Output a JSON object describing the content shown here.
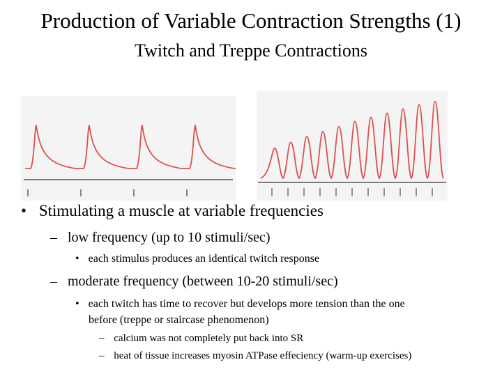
{
  "slide": {
    "title": "Production of Variable Contraction Strengths (1)",
    "subtitle": "Twitch and Treppe Contractions"
  },
  "figures": {
    "twitch": {
      "peak_count": 4,
      "stimulus_mark_count": 4,
      "trace_color": "#d9534f",
      "baseline_color": "#555555"
    },
    "treppe": {
      "peak_count": 11,
      "stimulus_mark_count": 11,
      "trace_color": "#d9534f",
      "baseline_color": "#555555",
      "relative_peaks": [
        0.36,
        0.43,
        0.5,
        0.56,
        0.62,
        0.68,
        0.73,
        0.78,
        0.83,
        0.88,
        0.92
      ]
    }
  },
  "bullets": {
    "b1": {
      "marker": "•",
      "text": "Stimulating a muscle at variable frequencies"
    },
    "b1a": {
      "marker": "–",
      "text": "low frequency (up to 10 stimuli/sec)"
    },
    "b1a_i": {
      "marker": "•",
      "text": "each stimulus produces an identical twitch response"
    },
    "b1b": {
      "marker": "–",
      "text": "moderate frequency (between 10-20 stimuli/sec)"
    },
    "b1b_i_line1": {
      "marker": "•",
      "text": "each twitch has time to recover but develops more tension than the one"
    },
    "b1b_i_line2": "before (treppe or staircase phenomenon)",
    "b1b_i_a": {
      "marker": "–",
      "text": "calcium was not completely put back into SR"
    },
    "b1b_i_b": {
      "marker": "–",
      "text": "heat of tissue increases myosin ATPase effeciency (warm-up exercises)"
    }
  }
}
